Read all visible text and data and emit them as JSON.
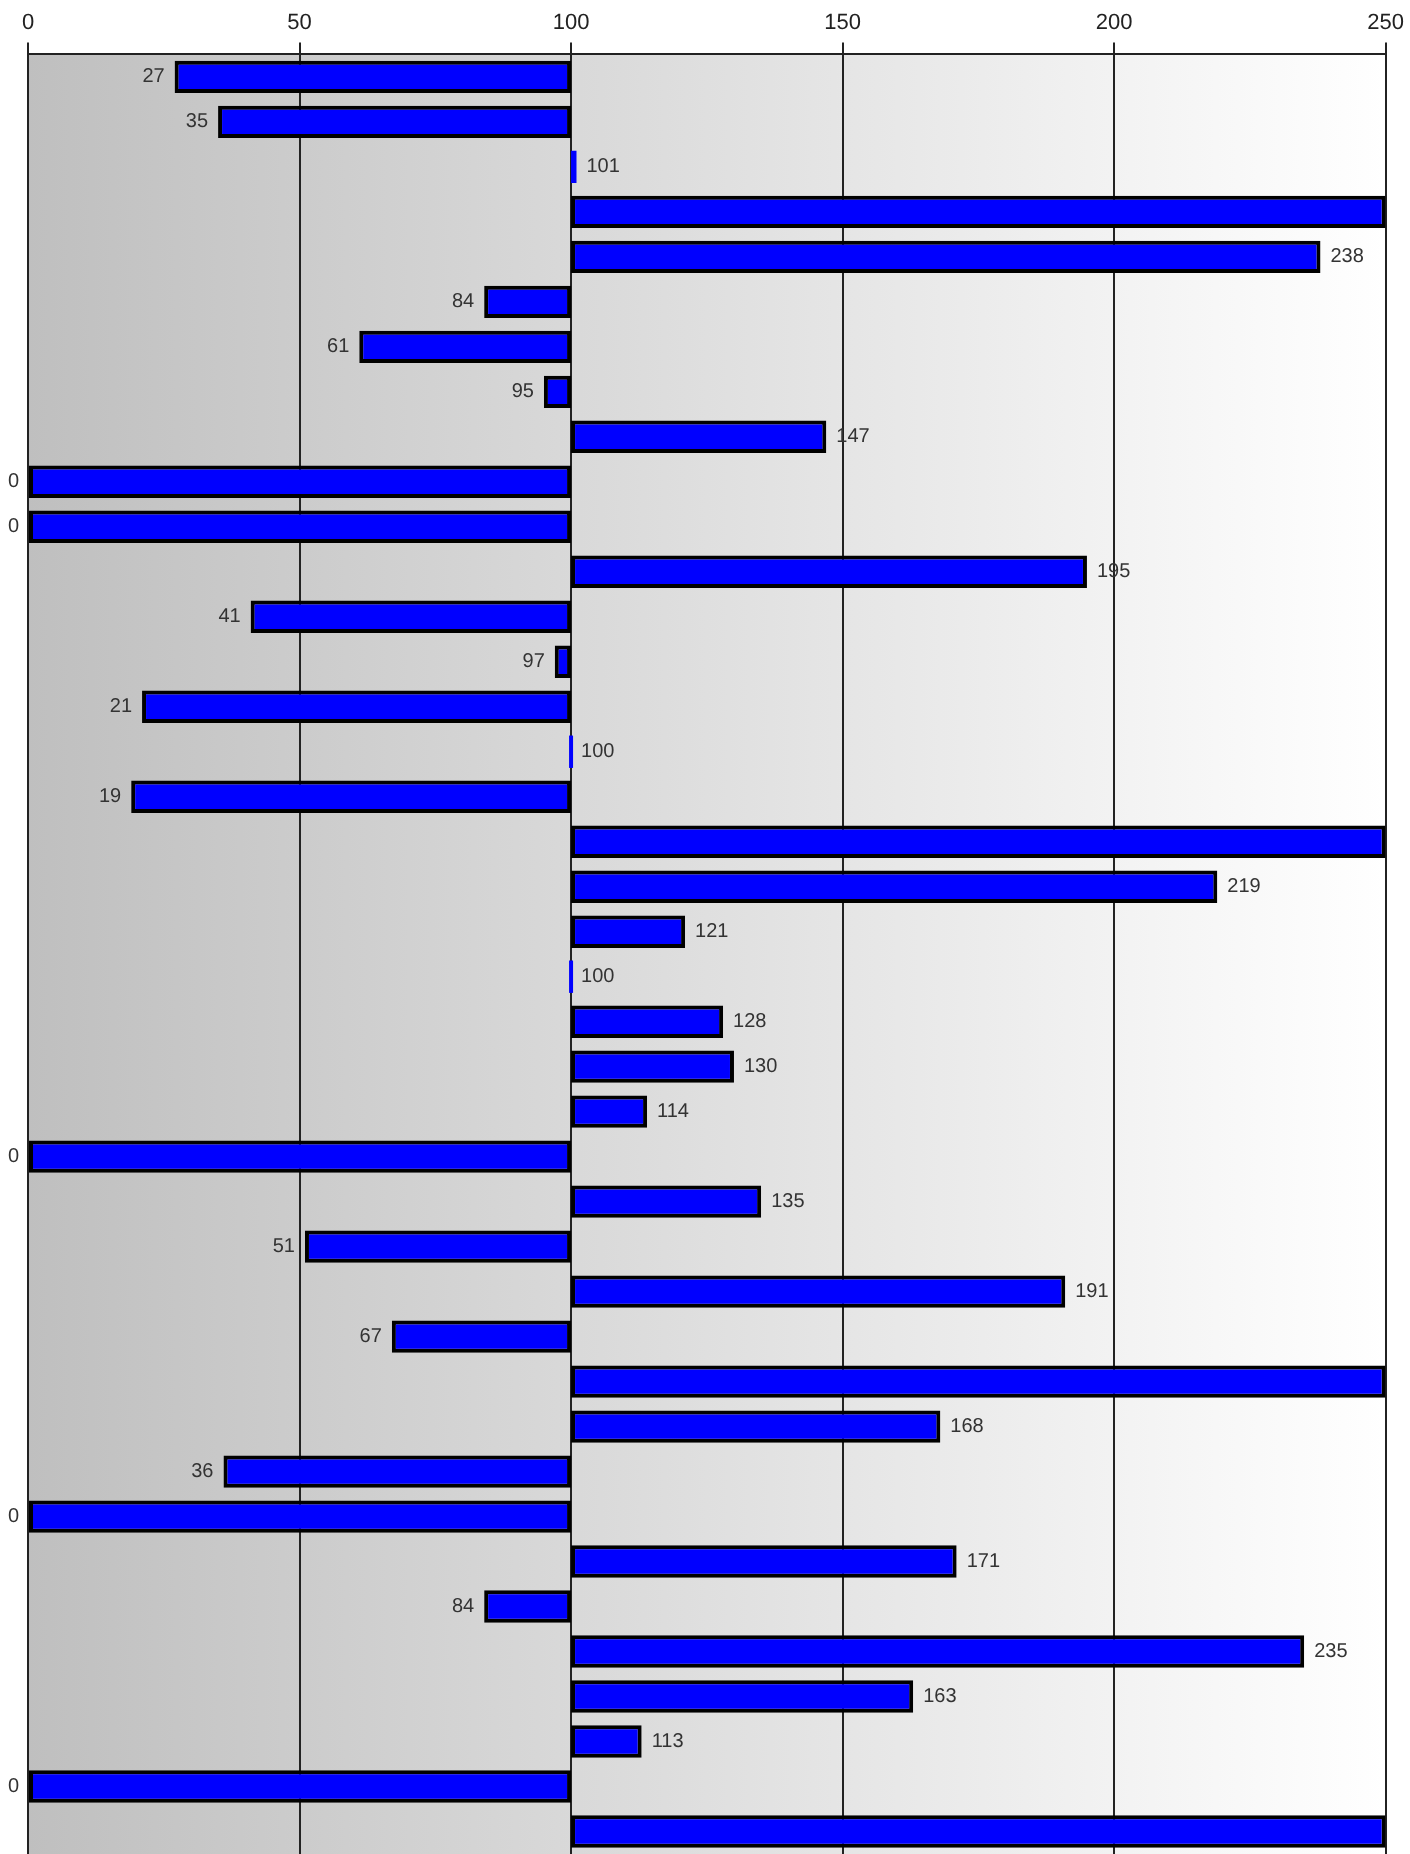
{
  "chart_data": {
    "type": "bar",
    "orientation": "horizontal",
    "categories": [
      null,
      null,
      null,
      null,
      null,
      null,
      null,
      null,
      null,
      null,
      null,
      null,
      null,
      null,
      null,
      null,
      null,
      null,
      null,
      null,
      null,
      null,
      null,
      null,
      null,
      null,
      null,
      null,
      null,
      null,
      null,
      null,
      null,
      null,
      null,
      null,
      null,
      null,
      null,
      null
    ],
    "base": [
      100,
      100,
      100,
      100,
      100,
      100,
      100,
      100,
      100,
      100,
      100,
      100,
      100,
      100,
      100,
      100,
      100,
      100,
      100,
      100,
      100,
      100,
      100,
      100,
      100,
      100,
      100,
      100,
      100,
      100,
      100,
      100,
      100,
      100,
      100,
      100,
      100,
      100,
      100,
      100
    ],
    "values": [
      -73,
      -65,
      1,
      150,
      138,
      -16,
      -39,
      -5,
      47,
      -100,
      -100,
      95,
      -59,
      -3,
      -79,
      0,
      -81,
      150,
      119,
      21,
      0,
      28,
      30,
      14,
      -100,
      35,
      -49,
      91,
      -33,
      150,
      68,
      -64,
      -100,
      71,
      -16,
      135,
      63,
      13,
      -100,
      150
    ],
    "value_labels": [
      "27",
      "35",
      "101",
      null,
      "238",
      "84",
      "61",
      "95",
      "147",
      "0",
      "0",
      "195",
      "41",
      "97",
      "21",
      "100",
      "19",
      null,
      "219",
      "121",
      "100",
      "128",
      "130",
      "114",
      "0",
      "135",
      "51",
      "191",
      "67",
      null,
      "168",
      "36",
      "0",
      "171",
      "84",
      "235",
      "163",
      "113",
      "0",
      null
    ],
    "color": "#0000ff",
    "xlim": [
      0,
      250
    ],
    "xticks": [
      0,
      50,
      100,
      150,
      200,
      250
    ],
    "grid": "x",
    "legend": false
  }
}
